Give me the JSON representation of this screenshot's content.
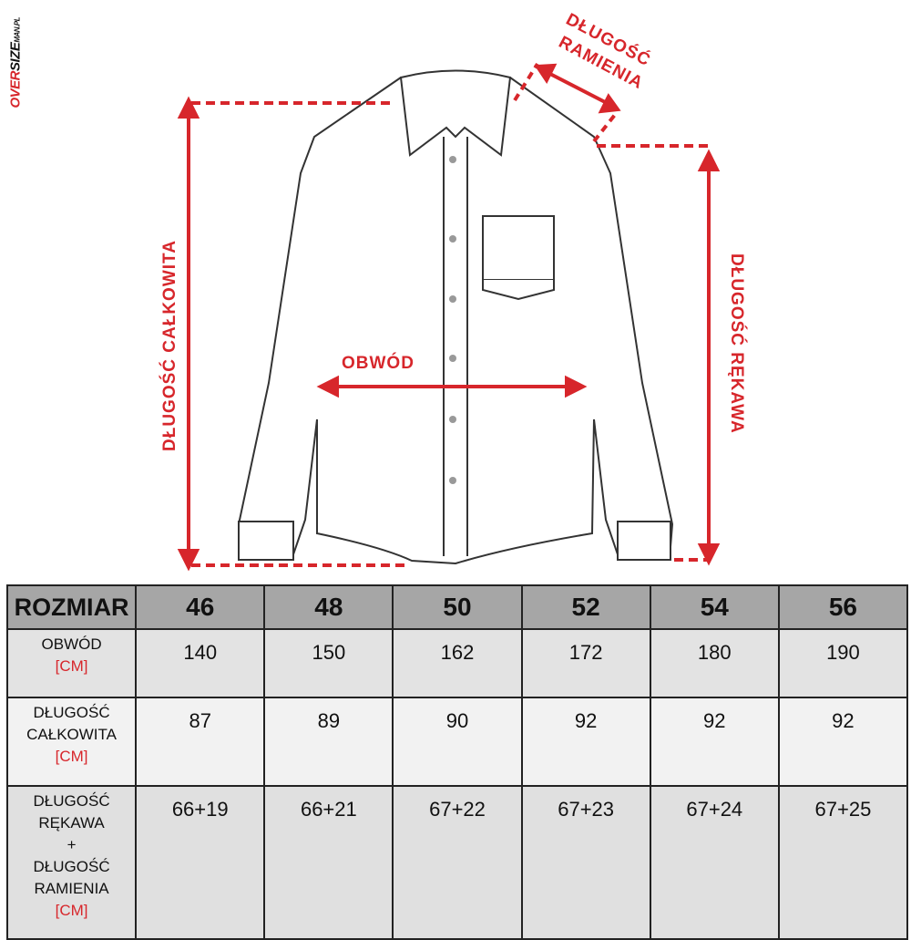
{
  "brand": {
    "logo_text": "OVERSIZEMAN.PL"
  },
  "diagram": {
    "labels": {
      "shoulder_line1": "DŁUGOŚĆ",
      "shoulder_line2": "RAMIENIA",
      "total_length": "DŁUGOŚĆ CAŁKOWITA",
      "circumference": "OBWÓD",
      "sleeve_length": "DŁUGOŚĆ RĘKAWA"
    },
    "accent_color": "#d7262b"
  },
  "table": {
    "header": [
      "ROZMIAR",
      "46",
      "48",
      "50",
      "52",
      "54",
      "56"
    ],
    "unit": "[CM]",
    "rows": [
      {
        "label": [
          "OBWÓD"
        ],
        "values": [
          "140",
          "150",
          "162",
          "172",
          "180",
          "190"
        ]
      },
      {
        "label": [
          "DŁUGOŚĆ",
          "CAŁKOWITA"
        ],
        "values": [
          "87",
          "89",
          "90",
          "92",
          "92",
          "92"
        ]
      },
      {
        "label": [
          "DŁUGOŚĆ",
          "RĘKAWA",
          "+",
          "DŁUGOŚĆ",
          "RAMIENIA"
        ],
        "values": [
          "66+19",
          "66+21",
          "67+22",
          "67+23",
          "67+24",
          "67+25"
        ]
      }
    ]
  }
}
